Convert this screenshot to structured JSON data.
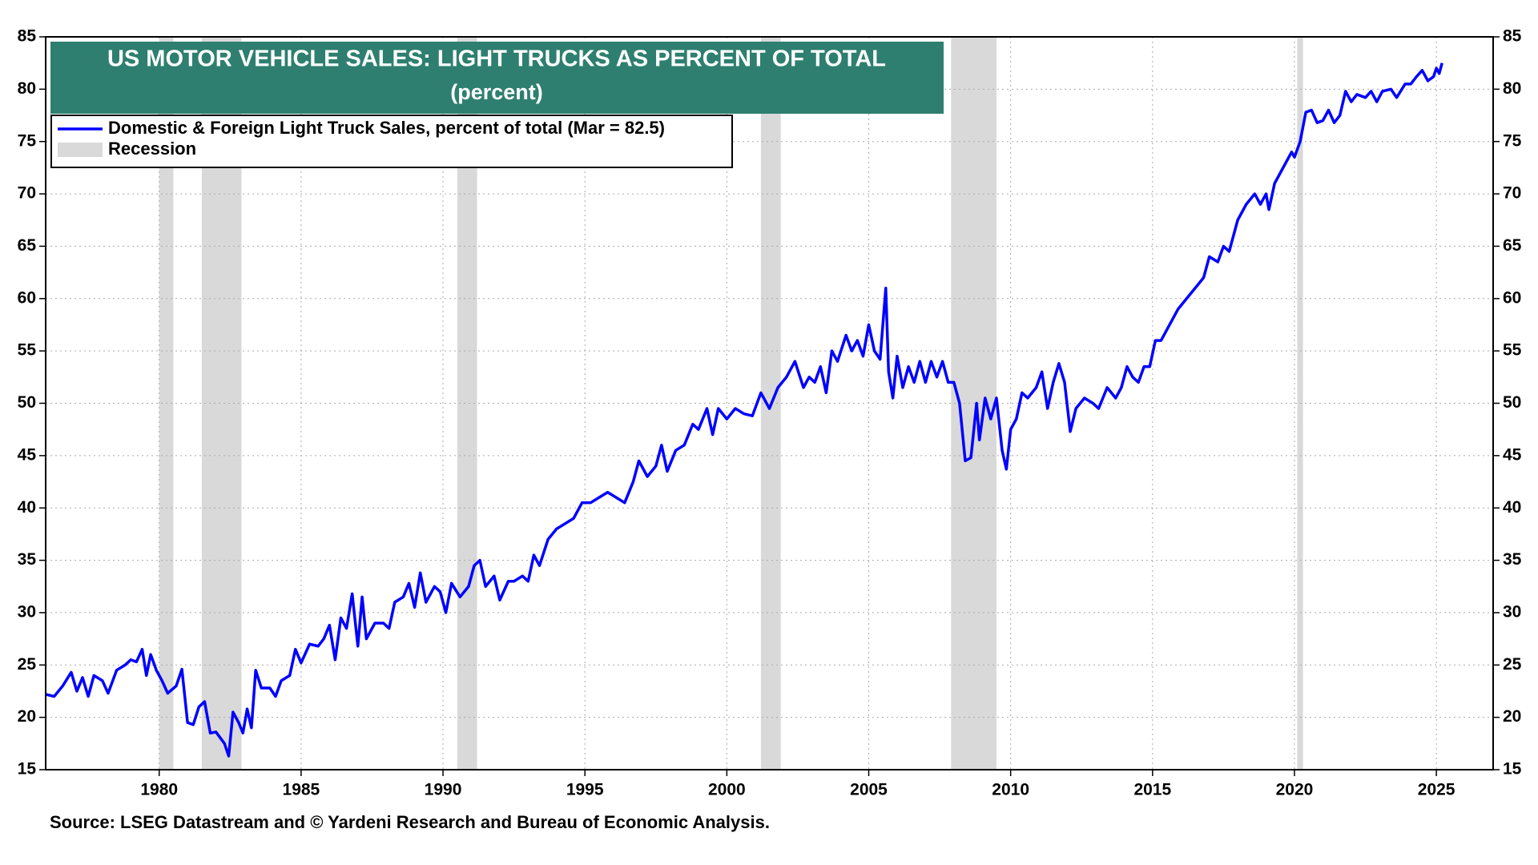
{
  "chart_data": {
    "type": "line",
    "title": "US MOTOR VEHICLE SALES: LIGHT TRUCKS AS PERCENT OF TOTAL",
    "subtitle": "(percent)",
    "source": "Source: LSEG Datastream and © Yardeni Research and Bureau of Economic Analysis.",
    "x": [
      1976.0,
      1976.3,
      1976.6,
      1976.9,
      1977.1,
      1977.3,
      1977.5,
      1977.7,
      1978.0,
      1978.2,
      1978.5,
      1978.8,
      1979.0,
      1979.2,
      1979.4,
      1979.55,
      1979.7,
      1979.9,
      1980.1,
      1980.3,
      1980.6,
      1980.8,
      1981.0,
      1981.2,
      1981.4,
      1981.6,
      1981.8,
      1982.0,
      1982.3,
      1982.45,
      1982.6,
      1982.8,
      1982.95,
      1983.1,
      1983.25,
      1983.4,
      1983.6,
      1983.9,
      1984.1,
      1984.3,
      1984.6,
      1984.8,
      1985.0,
      1985.3,
      1985.6,
      1985.8,
      1986.0,
      1986.2,
      1986.4,
      1986.6,
      1986.8,
      1987.0,
      1987.15,
      1987.3,
      1987.6,
      1987.9,
      1988.1,
      1988.3,
      1988.6,
      1988.8,
      1989.0,
      1989.2,
      1989.4,
      1989.7,
      1989.9,
      1990.1,
      1990.3,
      1990.6,
      1990.9,
      1991.1,
      1991.3,
      1991.5,
      1991.8,
      1992.0,
      1992.3,
      1992.5,
      1992.8,
      1993.0,
      1993.2,
      1993.4,
      1993.7,
      1994.0,
      1994.3,
      1994.6,
      1994.9,
      1995.2,
      1995.5,
      1995.8,
      1996.1,
      1996.4,
      1996.7,
      1996.9,
      1997.2,
      1997.5,
      1997.7,
      1997.9,
      1998.2,
      1998.5,
      1998.8,
      1999.0,
      1999.3,
      1999.5,
      1999.7,
      2000.0,
      2000.3,
      2000.6,
      2000.9,
      2001.2,
      2001.5,
      2001.8,
      2002.1,
      2002.4,
      2002.7,
      2002.9,
      2003.1,
      2003.3,
      2003.5,
      2003.7,
      2003.9,
      2004.2,
      2004.4,
      2004.6,
      2004.8,
      2005.0,
      2005.2,
      2005.4,
      2005.6,
      2005.7,
      2005.85,
      2006.0,
      2006.2,
      2006.4,
      2006.6,
      2006.8,
      2007.0,
      2007.2,
      2007.4,
      2007.6,
      2007.8,
      2008.0,
      2008.2,
      2008.4,
      2008.6,
      2008.8,
      2008.9,
      2009.1,
      2009.3,
      2009.5,
      2009.7,
      2009.85,
      2010.0,
      2010.2,
      2010.4,
      2010.6,
      2010.9,
      2011.1,
      2011.3,
      2011.5,
      2011.7,
      2011.9,
      2012.1,
      2012.3,
      2012.6,
      2012.9,
      2013.1,
      2013.4,
      2013.7,
      2013.9,
      2014.1,
      2014.3,
      2014.5,
      2014.7,
      2014.9,
      2015.1,
      2015.3,
      2015.6,
      2015.9,
      2016.2,
      2016.5,
      2016.8,
      2017.0,
      2017.3,
      2017.5,
      2017.7,
      2018.0,
      2018.3,
      2018.6,
      2018.8,
      2019.0,
      2019.1,
      2019.3,
      2019.6,
      2019.9,
      2020.0,
      2020.2,
      2020.4,
      2020.6,
      2020.8,
      2021.0,
      2021.2,
      2021.4,
      2021.6,
      2021.8,
      2022.0,
      2022.2,
      2022.5,
      2022.7,
      2022.9,
      2023.1,
      2023.4,
      2023.6,
      2023.9,
      2024.1,
      2024.3,
      2024.5,
      2024.7,
      2024.9,
      2025.0,
      2025.1,
      2025.2
    ],
    "series": [
      {
        "name": "Domestic & Foreign Light Truck Sales, percent of total (Mar = 82.5)",
        "color": "#0000ff",
        "values": [
          22.2,
          22.0,
          23.0,
          24.3,
          22.5,
          23.8,
          22.0,
          24.0,
          23.5,
          22.3,
          24.5,
          25.0,
          25.5,
          25.3,
          26.5,
          24.0,
          26.0,
          24.5,
          23.5,
          22.3,
          23.0,
          24.6,
          19.5,
          19.3,
          21.0,
          21.5,
          18.5,
          18.6,
          17.5,
          16.3,
          20.5,
          19.5,
          18.5,
          20.8,
          19.0,
          24.5,
          22.8,
          22.8,
          22.0,
          23.5,
          24.0,
          26.5,
          25.2,
          27.0,
          26.8,
          27.5,
          28.8,
          25.5,
          29.5,
          28.5,
          31.8,
          26.8,
          31.5,
          27.5,
          29.0,
          29.0,
          28.5,
          31.0,
          31.5,
          32.8,
          30.5,
          33.8,
          31.0,
          32.5,
          32.0,
          30.0,
          32.8,
          31.5,
          32.5,
          34.5,
          35.0,
          32.5,
          33.5,
          31.2,
          33.0,
          33.0,
          33.5,
          33.0,
          35.5,
          34.5,
          37.0,
          38.0,
          38.5,
          39.0,
          40.5,
          40.5,
          41.0,
          41.5,
          41.0,
          40.5,
          42.5,
          44.5,
          43.0,
          44.0,
          46.0,
          43.5,
          45.5,
          46.0,
          48.0,
          47.5,
          49.5,
          47.0,
          49.5,
          48.5,
          49.5,
          49.0,
          48.8,
          51.0,
          49.5,
          51.5,
          52.5,
          54.0,
          51.5,
          52.5,
          52.0,
          53.5,
          51.0,
          55.0,
          54.0,
          56.5,
          55.0,
          56.0,
          54.5,
          57.5,
          55.0,
          54.2,
          61.0,
          53.0,
          50.5,
          54.5,
          51.5,
          53.5,
          52.0,
          54.0,
          52.0,
          54.0,
          52.5,
          54.0,
          52.0,
          52.0,
          50.0,
          44.5,
          44.8,
          50.0,
          46.5,
          50.5,
          48.5,
          50.5,
          45.5,
          43.7,
          47.5,
          48.5,
          51.0,
          50.5,
          51.5,
          53.0,
          49.5,
          52.0,
          53.8,
          52.0,
          47.3,
          49.5,
          50.5,
          50.0,
          49.5,
          51.5,
          50.5,
          51.5,
          53.5,
          52.5,
          52.0,
          53.5,
          53.5,
          56.0,
          56.0,
          57.5,
          59.0,
          60.0,
          61.0,
          62.0,
          64.0,
          63.5,
          65.0,
          64.5,
          67.5,
          69.0,
          70.0,
          69.0,
          70.0,
          68.5,
          71.0,
          72.5,
          74.0,
          73.5,
          75.0,
          77.8,
          78.0,
          76.8,
          77.0,
          78.0,
          76.8,
          77.5,
          79.8,
          78.8,
          79.5,
          79.2,
          79.8,
          78.8,
          79.8,
          80.0,
          79.2,
          80.5,
          80.5,
          81.2,
          81.8,
          80.8,
          81.2,
          82.0,
          81.5,
          82.5
        ]
      }
    ],
    "recession_label": "Recession",
    "recession_color": "#d9d9d9",
    "recessions": [
      [
        1980.0,
        1980.5
      ],
      [
        1981.5,
        1982.9
      ],
      [
        1990.5,
        1991.2
      ],
      [
        2001.2,
        2001.9
      ],
      [
        2007.9,
        2009.5
      ],
      [
        2020.1,
        2020.3
      ]
    ],
    "xlim": [
      1976,
      2027
    ],
    "xticks": [
      1980,
      1985,
      1990,
      1995,
      2000,
      2005,
      2010,
      2015,
      2020,
      2025
    ],
    "ylim": [
      15,
      85
    ],
    "yticks": [
      15,
      20,
      25,
      30,
      35,
      40,
      45,
      50,
      55,
      60,
      65,
      70,
      75,
      80,
      85
    ],
    "grid": true
  }
}
